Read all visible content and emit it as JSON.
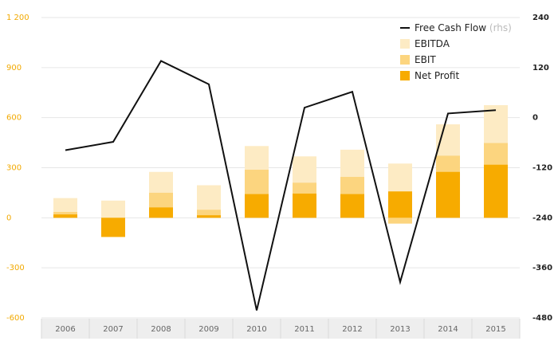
{
  "chart_data": {
    "type": "bar",
    "categories": [
      "2006",
      "2007",
      "2008",
      "2009",
      "2010",
      "2011",
      "2012",
      "2013",
      "2014",
      "2015"
    ],
    "series": [
      {
        "name": "Net Profit",
        "kind": "bar",
        "axis": "left",
        "color": "#f7ab00",
        "values": [
          20,
          -115,
          62,
          15,
          142,
          145,
          142,
          158,
          275,
          318
        ]
      },
      {
        "name": "EBIT",
        "kind": "bar",
        "axis": "left",
        "color": "#fcd57f",
        "values": [
          35,
          -80,
          150,
          48,
          288,
          210,
          245,
          -35,
          372,
          448
        ]
      },
      {
        "name": "EBITDA",
        "kind": "bar",
        "axis": "left",
        "color": "#fdebc4",
        "values": [
          118,
          103,
          275,
          195,
          430,
          368,
          408,
          325,
          560,
          675
        ]
      },
      {
        "name": "Free Cash Flow",
        "suffix": "(rhs)",
        "kind": "line",
        "axis": "right",
        "color": "#111111",
        "values": [
          -78,
          -58,
          136,
          80,
          -462,
          24,
          62,
          -394,
          10,
          18
        ]
      }
    ],
    "y_left": {
      "min": -600,
      "max": 1200,
      "ticks": [
        "1 200",
        "900",
        "600",
        "300",
        "0",
        "-300",
        "-600"
      ],
      "tick_values": [
        1200,
        900,
        600,
        300,
        0,
        -300,
        -600
      ]
    },
    "y_right": {
      "min": -480,
      "max": 240,
      "ticks": [
        "240",
        "120",
        "0",
        "-120",
        "-240",
        "-360",
        "-480"
      ],
      "tick_values": [
        240,
        120,
        0,
        -120,
        -240,
        -360,
        -480
      ]
    },
    "grid": true,
    "legend": "top-right",
    "colors": {
      "left_axis": "#f2a900",
      "grid": "#e6e6e6",
      "x_band": "#eeeeee"
    }
  }
}
